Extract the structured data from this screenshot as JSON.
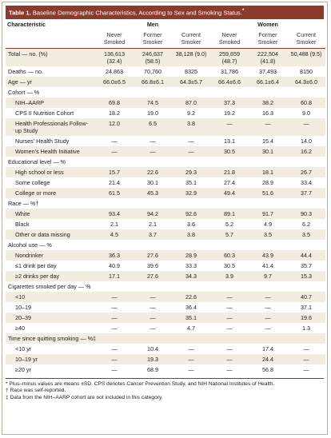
{
  "table_label": "Table 1.",
  "title": "Baseline Demographic Characteristics, According to Sex and Smoking Status.",
  "title_note": "*",
  "header": {
    "characteristic": "Characteristic",
    "groups": [
      "Men",
      "Women"
    ],
    "columns": [
      "Never Smoked",
      "Former Smoker",
      "Current Smoker",
      "Never Smoked",
      "Former Smoker",
      "Current Smoker"
    ]
  },
  "rows": [
    {
      "label": "Total — no. (%)",
      "values": [
        "136,613 (32.4)",
        "246,637 (58.5)",
        "38,128 (9.0)",
        "259,659 (48.7)",
        "222,504 (41.8)",
        "50,488 (9.5)"
      ]
    },
    {
      "label": "Deaths — no.",
      "values": [
        "24,863",
        "70,760",
        "8325",
        "31,786",
        "37,493",
        "8150"
      ]
    },
    {
      "label": "Age — yr",
      "values": [
        "66.0±6.5",
        "66.8±6.1",
        "64.3±5.7",
        "66.4±6.6",
        "66.1±6.4",
        "64.3±6.0"
      ]
    }
  ],
  "groups": [
    {
      "heading": "Cohort — %",
      "rows": [
        {
          "label": "NIH–AARP",
          "values": [
            "69.8",
            "74.5",
            "87.0",
            "37.3",
            "38.2",
            "60.8"
          ]
        },
        {
          "label": "CPS II Nutrition Cohort",
          "values": [
            "18.2",
            "19.0",
            "9.2",
            "19.2",
            "16.3",
            "9.0"
          ]
        },
        {
          "label": "Health Professionals Follow-up Study",
          "values": [
            "12.0",
            "6.5",
            "3.8",
            "—",
            "—",
            "—"
          ]
        },
        {
          "label": "Nurses' Health Study",
          "values": [
            "—",
            "—",
            "—",
            "13.1",
            "15.4",
            "14.0"
          ]
        },
        {
          "label": "Women's Health Initiative",
          "values": [
            "—",
            "—",
            "—",
            "30.5",
            "30.1",
            "16.2"
          ]
        }
      ]
    },
    {
      "heading": "Educational level — %",
      "rows": [
        {
          "label": "High school or less",
          "values": [
            "15.7",
            "22.6",
            "29.3",
            "21.8",
            "18.1",
            "26.7"
          ]
        },
        {
          "label": "Some college",
          "values": [
            "21.4",
            "30.1",
            "35.1",
            "27.4",
            "28.9",
            "33.4"
          ]
        },
        {
          "label": "College or more",
          "values": [
            "61.5",
            "45.3",
            "32.9",
            "49.4",
            "51.6",
            "37.7"
          ]
        }
      ]
    },
    {
      "heading": "Race — %†",
      "rows": [
        {
          "label": "White",
          "values": [
            "93.4",
            "94.2",
            "92.6",
            "89.1",
            "91.7",
            "90.3"
          ]
        },
        {
          "label": "Black",
          "values": [
            "2.1",
            "2.1",
            "3.6",
            "5.2",
            "4.9",
            "6.2"
          ]
        },
        {
          "label": "Other or data missing",
          "values": [
            "4.5",
            "3.7",
            "3.8",
            "5.7",
            "3.5",
            "3.5"
          ]
        }
      ]
    },
    {
      "heading": "Alcohol use — %",
      "rows": [
        {
          "label": "Nondrinker",
          "values": [
            "36.3",
            "27.6",
            "28.9",
            "60.3",
            "43.9",
            "44.4"
          ]
        },
        {
          "label": "≤1 drink per day",
          "values": [
            "40.9",
            "39.6",
            "33.3",
            "30.5",
            "41.4",
            "35.7"
          ]
        },
        {
          "label": "≥2 drinks per day",
          "values": [
            "17.1",
            "27.6",
            "34.3",
            "3.9",
            "9.7",
            "15.3"
          ]
        }
      ]
    },
    {
      "heading": "Cigarettes smoked per day — %",
      "rows": [
        {
          "label": "<10",
          "values": [
            "—",
            "—",
            "22.6",
            "—",
            "—",
            "40.7"
          ]
        },
        {
          "label": "10–19",
          "values": [
            "—",
            "—",
            "36.4",
            "—",
            "—",
            "37.1"
          ]
        },
        {
          "label": "20–39",
          "values": [
            "—",
            "—",
            "35.1",
            "—",
            "—",
            "19.6"
          ]
        },
        {
          "label": "≥40",
          "values": [
            "—",
            "—",
            "4.7",
            "—",
            "—",
            "1.3"
          ]
        }
      ]
    },
    {
      "heading": "Time since quitting smoking — %‡",
      "rows": [
        {
          "label": "<10 yr",
          "values": [
            "—",
            "10.4",
            "—",
            "—",
            "17.4",
            "—"
          ]
        },
        {
          "label": "10–19 yr",
          "values": [
            "—",
            "19.3",
            "—",
            "—",
            "24.4",
            "—"
          ]
        },
        {
          "label": "≥20 yr",
          "values": [
            "—",
            "68.9",
            "—",
            "—",
            "56.8",
            "—"
          ]
        }
      ]
    }
  ],
  "footnotes": [
    {
      "symbol": "*",
      "text": "Plus–minus values are means ±SD. CPS denotes Cancer Prevention Study, and NIH National Institutes of Health."
    },
    {
      "symbol": "†",
      "text": "Race was self-reported."
    },
    {
      "symbol": "‡",
      "text": "Data from the NIH–AARP cohort are not included in this category."
    }
  ]
}
